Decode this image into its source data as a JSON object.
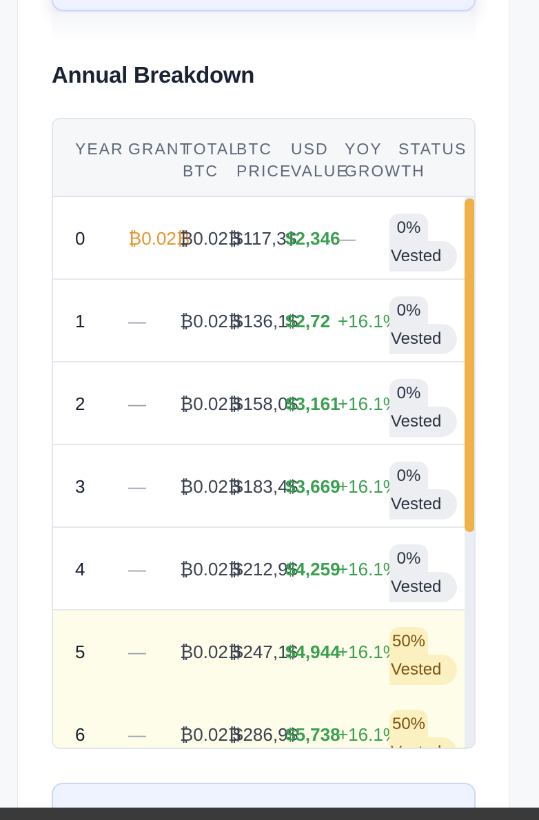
{
  "section": {
    "title": "Annual Breakdown"
  },
  "table": {
    "headers": {
      "year": "YEAR",
      "grant": "GRANT",
      "total_btc_1": "TOTAL",
      "total_btc_2": "BTC",
      "btc_price_1": "BTC",
      "btc_price_2": "PRICE",
      "usd_value_1": "USD",
      "usd_value_2": "VALUE",
      "yoy_growth_1": "YOY",
      "yoy_growth_2": "GROWTH",
      "status": "STATUS"
    },
    "rows": [
      {
        "year": "0",
        "grant": "₿0.02₿",
        "total": "₿0.02₿",
        "price": "$117,3$",
        "usd": "$2,346",
        "yoy": "—",
        "status_1": "0%",
        "status_2": "Vested"
      },
      {
        "year": "1",
        "grant": "—",
        "total": "₿0.02₿",
        "price": "$136,1$",
        "usd": "$2,72",
        "yoy": "+16.1%",
        "status_1": "0%",
        "status_2": "Vested"
      },
      {
        "year": "2",
        "grant": "—",
        "total": "₿0.02₿",
        "price": "$158,0$",
        "usd": "$3,161",
        "yoy": "+16.1%",
        "status_1": "0%",
        "status_2": "Vested"
      },
      {
        "year": "3",
        "grant": "—",
        "total": "₿0.02₿",
        "price": "$183,4$",
        "usd": "$3,669",
        "yoy": "+16.1%",
        "status_1": "0%",
        "status_2": "Vested"
      },
      {
        "year": "4",
        "grant": "—",
        "total": "₿0.02₿",
        "price": "$212,9$",
        "usd": "$4,259",
        "yoy": "+16.1%",
        "status_1": "0%",
        "status_2": "Vested"
      },
      {
        "year": "5",
        "grant": "—",
        "total": "₿0.02₿",
        "price": "$247,1$",
        "usd": "$4,944",
        "yoy": "+16.1%",
        "status_1": "50%",
        "status_2": "Vested"
      },
      {
        "year": "6",
        "grant": "—",
        "total": "₿0.02₿",
        "price": "$286,9$",
        "usd": "$5,738",
        "yoy": "+16.1%",
        "status_1": "50%",
        "status_2": "Vested"
      }
    ]
  },
  "colors": {
    "btc_orange": "#e8942e",
    "positive_green": "#3aa04f",
    "scroll_thumb": "#efb148",
    "half_vested_row": "#fefde9"
  }
}
